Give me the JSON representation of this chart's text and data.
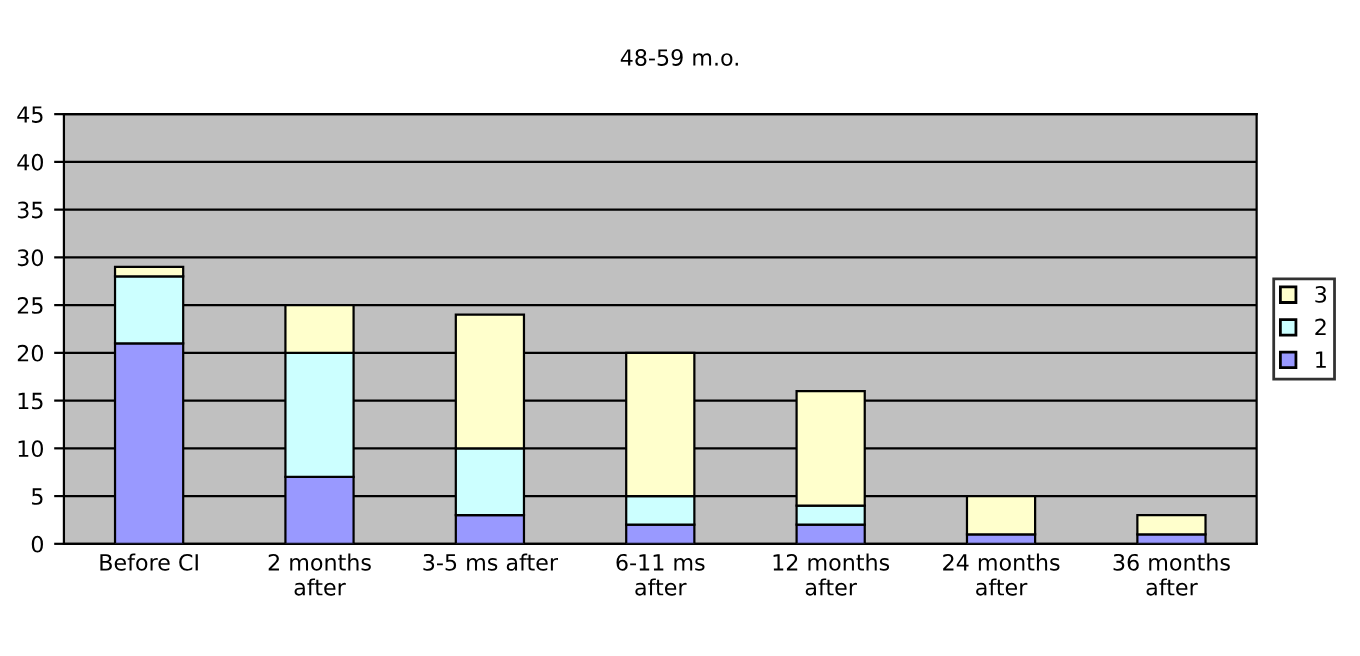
{
  "chart_data": {
    "type": "bar",
    "title": "48-59 m.o.",
    "stacked": true,
    "categories": [
      "Before CI",
      "2 months\nafter",
      "3-5 ms after",
      "6-11 ms\nafter",
      "12 months\nafter",
      "24 months\nafter",
      "36 months\nafter"
    ],
    "series": [
      {
        "name": "1",
        "color": "#9999ff",
        "values": [
          21,
          7,
          3,
          2,
          2,
          1,
          1
        ]
      },
      {
        "name": "2",
        "color": "#ccffff",
        "values": [
          7,
          13,
          7,
          3,
          2,
          null,
          null
        ]
      },
      {
        "name": "3",
        "color": "#ffffcc",
        "values": [
          1,
          5,
          14,
          15,
          12,
          4,
          2
        ]
      }
    ],
    "ylim": [
      0,
      45
    ],
    "yticks": [
      0,
      5,
      10,
      15,
      20,
      25,
      30,
      35,
      40,
      45
    ],
    "grid": "y",
    "legend": "right"
  }
}
